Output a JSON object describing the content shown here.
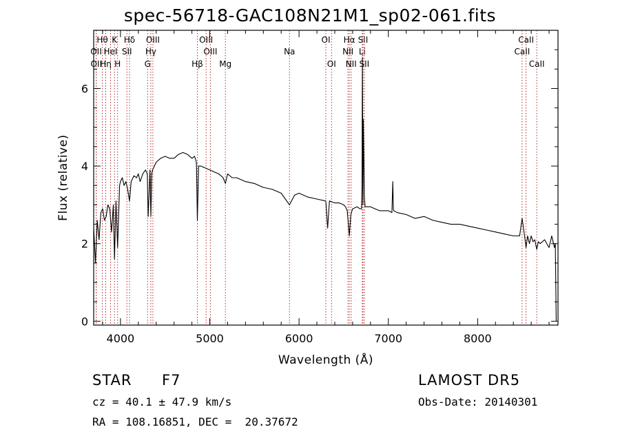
{
  "title": "spec-56718-GAC108N21M1_sp02-061.fits",
  "info": {
    "class": "STAR",
    "subclass": "F7",
    "cz": "cz = 40.1 ± 47.9 km/s",
    "coords": "RA = 108.16851, DEC =  20.37672",
    "survey": "LAMOST DR5",
    "obs_date": "Obs-Date: 20140301"
  },
  "colors": {
    "line": "#000000",
    "marker": "#b22222"
  },
  "chart_data": {
    "type": "line",
    "title": "spec-56718-GAC108N21M1_sp02-061.fits",
    "xlabel": "Wavelength (Å)",
    "ylabel": "Flux (relative)",
    "xlim": [
      3700,
      8900
    ],
    "ylim": [
      -0.1,
      7.5
    ],
    "xticks": [
      4000,
      5000,
      6000,
      7000,
      8000
    ],
    "yticks": [
      0,
      2,
      4,
      6
    ],
    "grid": false,
    "series": [
      {
        "values_x": [
          3700,
          3720,
          3740,
          3760,
          3780,
          3800,
          3820,
          3840,
          3860,
          3880,
          3900,
          3920,
          3933,
          3950,
          3968,
          3990,
          4000,
          4020,
          4040,
          4060,
          4080,
          4101,
          4120,
          4150,
          4180,
          4200,
          4220,
          4250,
          4280,
          4300,
          4310,
          4330,
          4340,
          4350,
          4360,
          4380,
          4400,
          4450,
          4500,
          4550,
          4600,
          4650,
          4700,
          4750,
          4800,
          4830,
          4850,
          4861,
          4875,
          4900,
          4950,
          5000,
          5050,
          5100,
          5150,
          5175,
          5200,
          5250,
          5300,
          5400,
          5500,
          5600,
          5700,
          5800,
          5893,
          5950,
          6000,
          6100,
          6200,
          6300,
          6320,
          6340,
          6400,
          6450,
          6500,
          6520,
          6540,
          6563,
          6580,
          6600,
          6650,
          6680,
          6700,
          6705,
          6710,
          6716,
          6720,
          6731,
          6740,
          6760,
          6800,
          6850,
          6900,
          6950,
          7000,
          7040,
          7050,
          7056,
          7060,
          7100,
          7200,
          7300,
          7400,
          7500,
          7600,
          7700,
          7800,
          7900,
          8000,
          8100,
          8200,
          8300,
          8400,
          8470,
          8498,
          8520,
          8542,
          8560,
          8580,
          8600,
          8620,
          8640,
          8662,
          8680,
          8700,
          8750,
          8800,
          8830,
          8850,
          8860,
          8870,
          8880
        ],
        "values_y": [
          2.4,
          1.5,
          2.6,
          2.1,
          2.8,
          2.9,
          2.6,
          2.7,
          3.0,
          2.9,
          2.3,
          3.0,
          1.6,
          3.1,
          1.9,
          3.5,
          3.6,
          3.7,
          3.5,
          3.6,
          3.4,
          3.1,
          3.6,
          3.75,
          3.7,
          3.8,
          3.6,
          3.8,
          3.9,
          3.8,
          2.7,
          3.9,
          2.7,
          3.8,
          3.9,
          4.0,
          4.1,
          4.2,
          4.25,
          4.2,
          4.2,
          4.3,
          4.35,
          4.3,
          4.2,
          4.25,
          4.1,
          2.6,
          4.0,
          4.0,
          3.95,
          3.9,
          3.85,
          3.8,
          3.7,
          3.55,
          3.8,
          3.7,
          3.7,
          3.6,
          3.55,
          3.45,
          3.4,
          3.3,
          3.0,
          3.25,
          3.3,
          3.2,
          3.15,
          3.1,
          2.4,
          3.1,
          3.05,
          3.05,
          3.0,
          2.95,
          2.85,
          2.2,
          2.75,
          2.9,
          2.95,
          2.9,
          2.9,
          3.4,
          6.8,
          3.0,
          5.2,
          3.2,
          2.95,
          2.95,
          2.95,
          2.9,
          2.85,
          2.85,
          2.85,
          2.8,
          3.6,
          2.9,
          2.85,
          2.8,
          2.75,
          2.65,
          2.7,
          2.6,
          2.55,
          2.5,
          2.5,
          2.45,
          2.4,
          2.35,
          2.3,
          2.25,
          2.2,
          2.2,
          2.65,
          2.3,
          1.9,
          2.2,
          2.0,
          2.2,
          2.05,
          2.1,
          1.85,
          2.05,
          2.0,
          2.1,
          1.9,
          2.2,
          2.0,
          1.9,
          2.0,
          0.0
        ]
      }
    ],
    "lines": [
      {
        "label": "Hθ",
        "x": 3797,
        "row": 1
      },
      {
        "label": "K",
        "x": 3933,
        "row": 1
      },
      {
        "label": "Hδ",
        "x": 4101,
        "row": 1
      },
      {
        "label": "OIII",
        "x": 4363,
        "row": 1
      },
      {
        "label": "OIII",
        "x": 4959,
        "row": 1
      },
      {
        "label": "OI",
        "x": 6300,
        "row": 1
      },
      {
        "label": "Hα",
        "x": 6563,
        "row": 1
      },
      {
        "label": "SII",
        "x": 6716,
        "row": 1
      },
      {
        "label": "CaII",
        "x": 8542,
        "row": 1
      },
      {
        "label": "OII",
        "x": 3727,
        "row": 2
      },
      {
        "label": "HeI",
        "x": 3889,
        "row": 2
      },
      {
        "label": "SII",
        "x": 4072,
        "row": 2
      },
      {
        "label": "Hγ",
        "x": 4340,
        "row": 2
      },
      {
        "label": "OIII",
        "x": 5007,
        "row": 2
      },
      {
        "label": "Na",
        "x": 5893,
        "row": 2
      },
      {
        "label": "NII",
        "x": 6548,
        "row": 2
      },
      {
        "label": "Li",
        "x": 6708,
        "row": 2
      },
      {
        "label": "CaII",
        "x": 8498,
        "row": 2
      },
      {
        "label": "OII",
        "x": 3729,
        "row": 3
      },
      {
        "label": "Hη",
        "x": 3835,
        "row": 3
      },
      {
        "label": "H",
        "x": 3968,
        "row": 3
      },
      {
        "label": "G",
        "x": 4304,
        "row": 3
      },
      {
        "label": "Hβ",
        "x": 4861,
        "row": 3
      },
      {
        "label": "Mg",
        "x": 5175,
        "row": 3
      },
      {
        "label": "OI",
        "x": 6364,
        "row": 3
      },
      {
        "label": "NII",
        "x": 6583,
        "row": 3
      },
      {
        "label": "SII",
        "x": 6731,
        "row": 3
      },
      {
        "label": "CaII",
        "x": 8662,
        "row": 3
      }
    ]
  }
}
